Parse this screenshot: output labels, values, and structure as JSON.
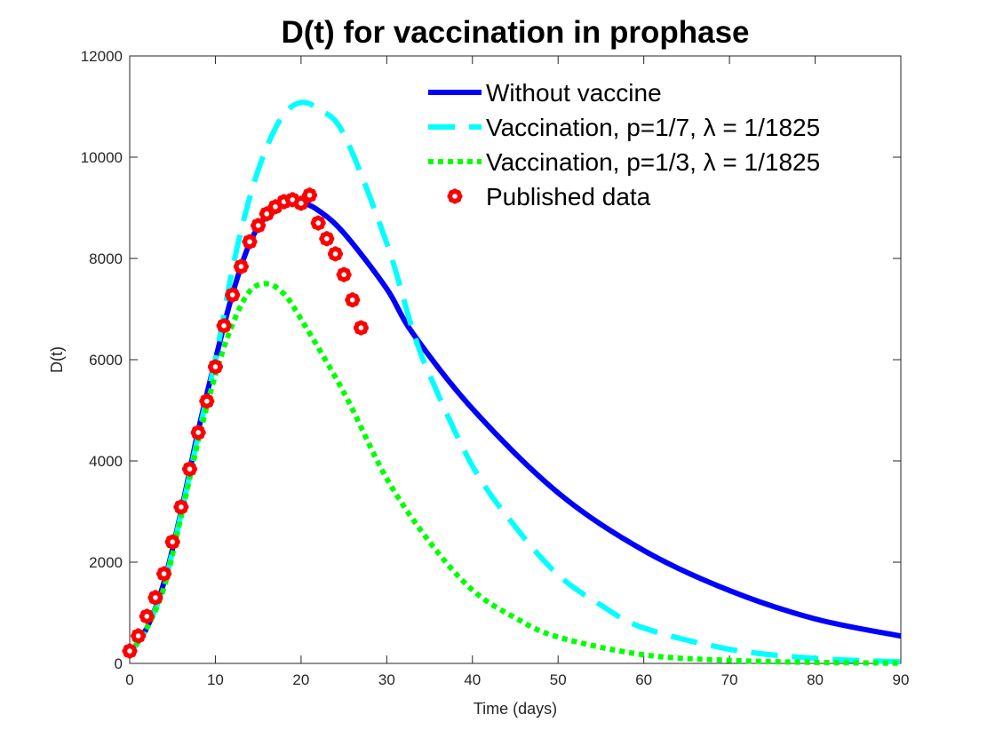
{
  "chart_data": {
    "type": "line",
    "title": "D(t) for vaccination in prophase",
    "xlabel": "Time (days)",
    "ylabel": "D(t)",
    "xlim": [
      0,
      90
    ],
    "ylim": [
      0,
      12000
    ],
    "xticks": [
      0,
      10,
      20,
      30,
      40,
      50,
      60,
      70,
      80,
      90
    ],
    "yticks": [
      0,
      2000,
      4000,
      6000,
      8000,
      10000,
      12000
    ],
    "grid": false,
    "legend_position": "top-right",
    "series": [
      {
        "name": "Without vaccine",
        "style": "solid",
        "color": "#0000ff",
        "x": [
          0,
          2,
          4,
          6,
          8,
          10,
          12,
          14,
          16,
          18,
          20,
          22,
          25,
          30,
          33,
          40,
          50,
          60,
          70,
          80,
          90
        ],
        "y": [
          200,
          700,
          1600,
          3000,
          4600,
          6000,
          7300,
          8300,
          8850,
          9080,
          9100,
          8950,
          8500,
          7400,
          6530,
          5030,
          3370,
          2230,
          1440,
          880,
          540
        ]
      },
      {
        "name": "Vaccination, p=1/7, λ = 1/1825",
        "style": "dashed",
        "color": "#00ffff",
        "x": [
          0,
          2,
          4,
          6,
          8,
          10,
          12,
          14,
          16,
          18,
          20,
          22,
          25,
          30,
          33,
          35,
          40,
          45,
          50,
          55,
          60,
          70,
          80,
          90
        ],
        "y": [
          200,
          700,
          1550,
          2950,
          4500,
          6000,
          7800,
          9200,
          10200,
          10850,
          11080,
          10950,
          10450,
          8300,
          6600,
          5700,
          3900,
          2700,
          1750,
          1150,
          700,
          280,
          100,
          30
        ]
      },
      {
        "name": "Vaccination, p=1/3, λ = 1/1825",
        "style": "dotted",
        "color": "#00ff00",
        "x": [
          0,
          2,
          4,
          6,
          8,
          10,
          12,
          14,
          16,
          18,
          20,
          25,
          30,
          35,
          40,
          45,
          50,
          60,
          70,
          80,
          90
        ],
        "y": [
          200,
          700,
          1500,
          2900,
          4400,
          5700,
          6700,
          7350,
          7500,
          7300,
          6800,
          5350,
          3650,
          2400,
          1450,
          900,
          520,
          170,
          60,
          20,
          5
        ]
      },
      {
        "name": "Published data",
        "style": "markers",
        "color": "#ff0000",
        "x": [
          0,
          1,
          2,
          3,
          4,
          5,
          6,
          7,
          8,
          9,
          10,
          11,
          12,
          13,
          14,
          15,
          16,
          17,
          18,
          19,
          20,
          21,
          22,
          23,
          24,
          25,
          26,
          27
        ],
        "y": [
          245,
          544,
          930,
          1300,
          1770,
          2400,
          3090,
          3840,
          4560,
          5180,
          5860,
          6670,
          7280,
          7840,
          8330,
          8650,
          8880,
          9020,
          9120,
          9160,
          9090,
          9250,
          8700,
          8390,
          8090,
          7680,
          7180,
          6630
        ]
      }
    ]
  }
}
